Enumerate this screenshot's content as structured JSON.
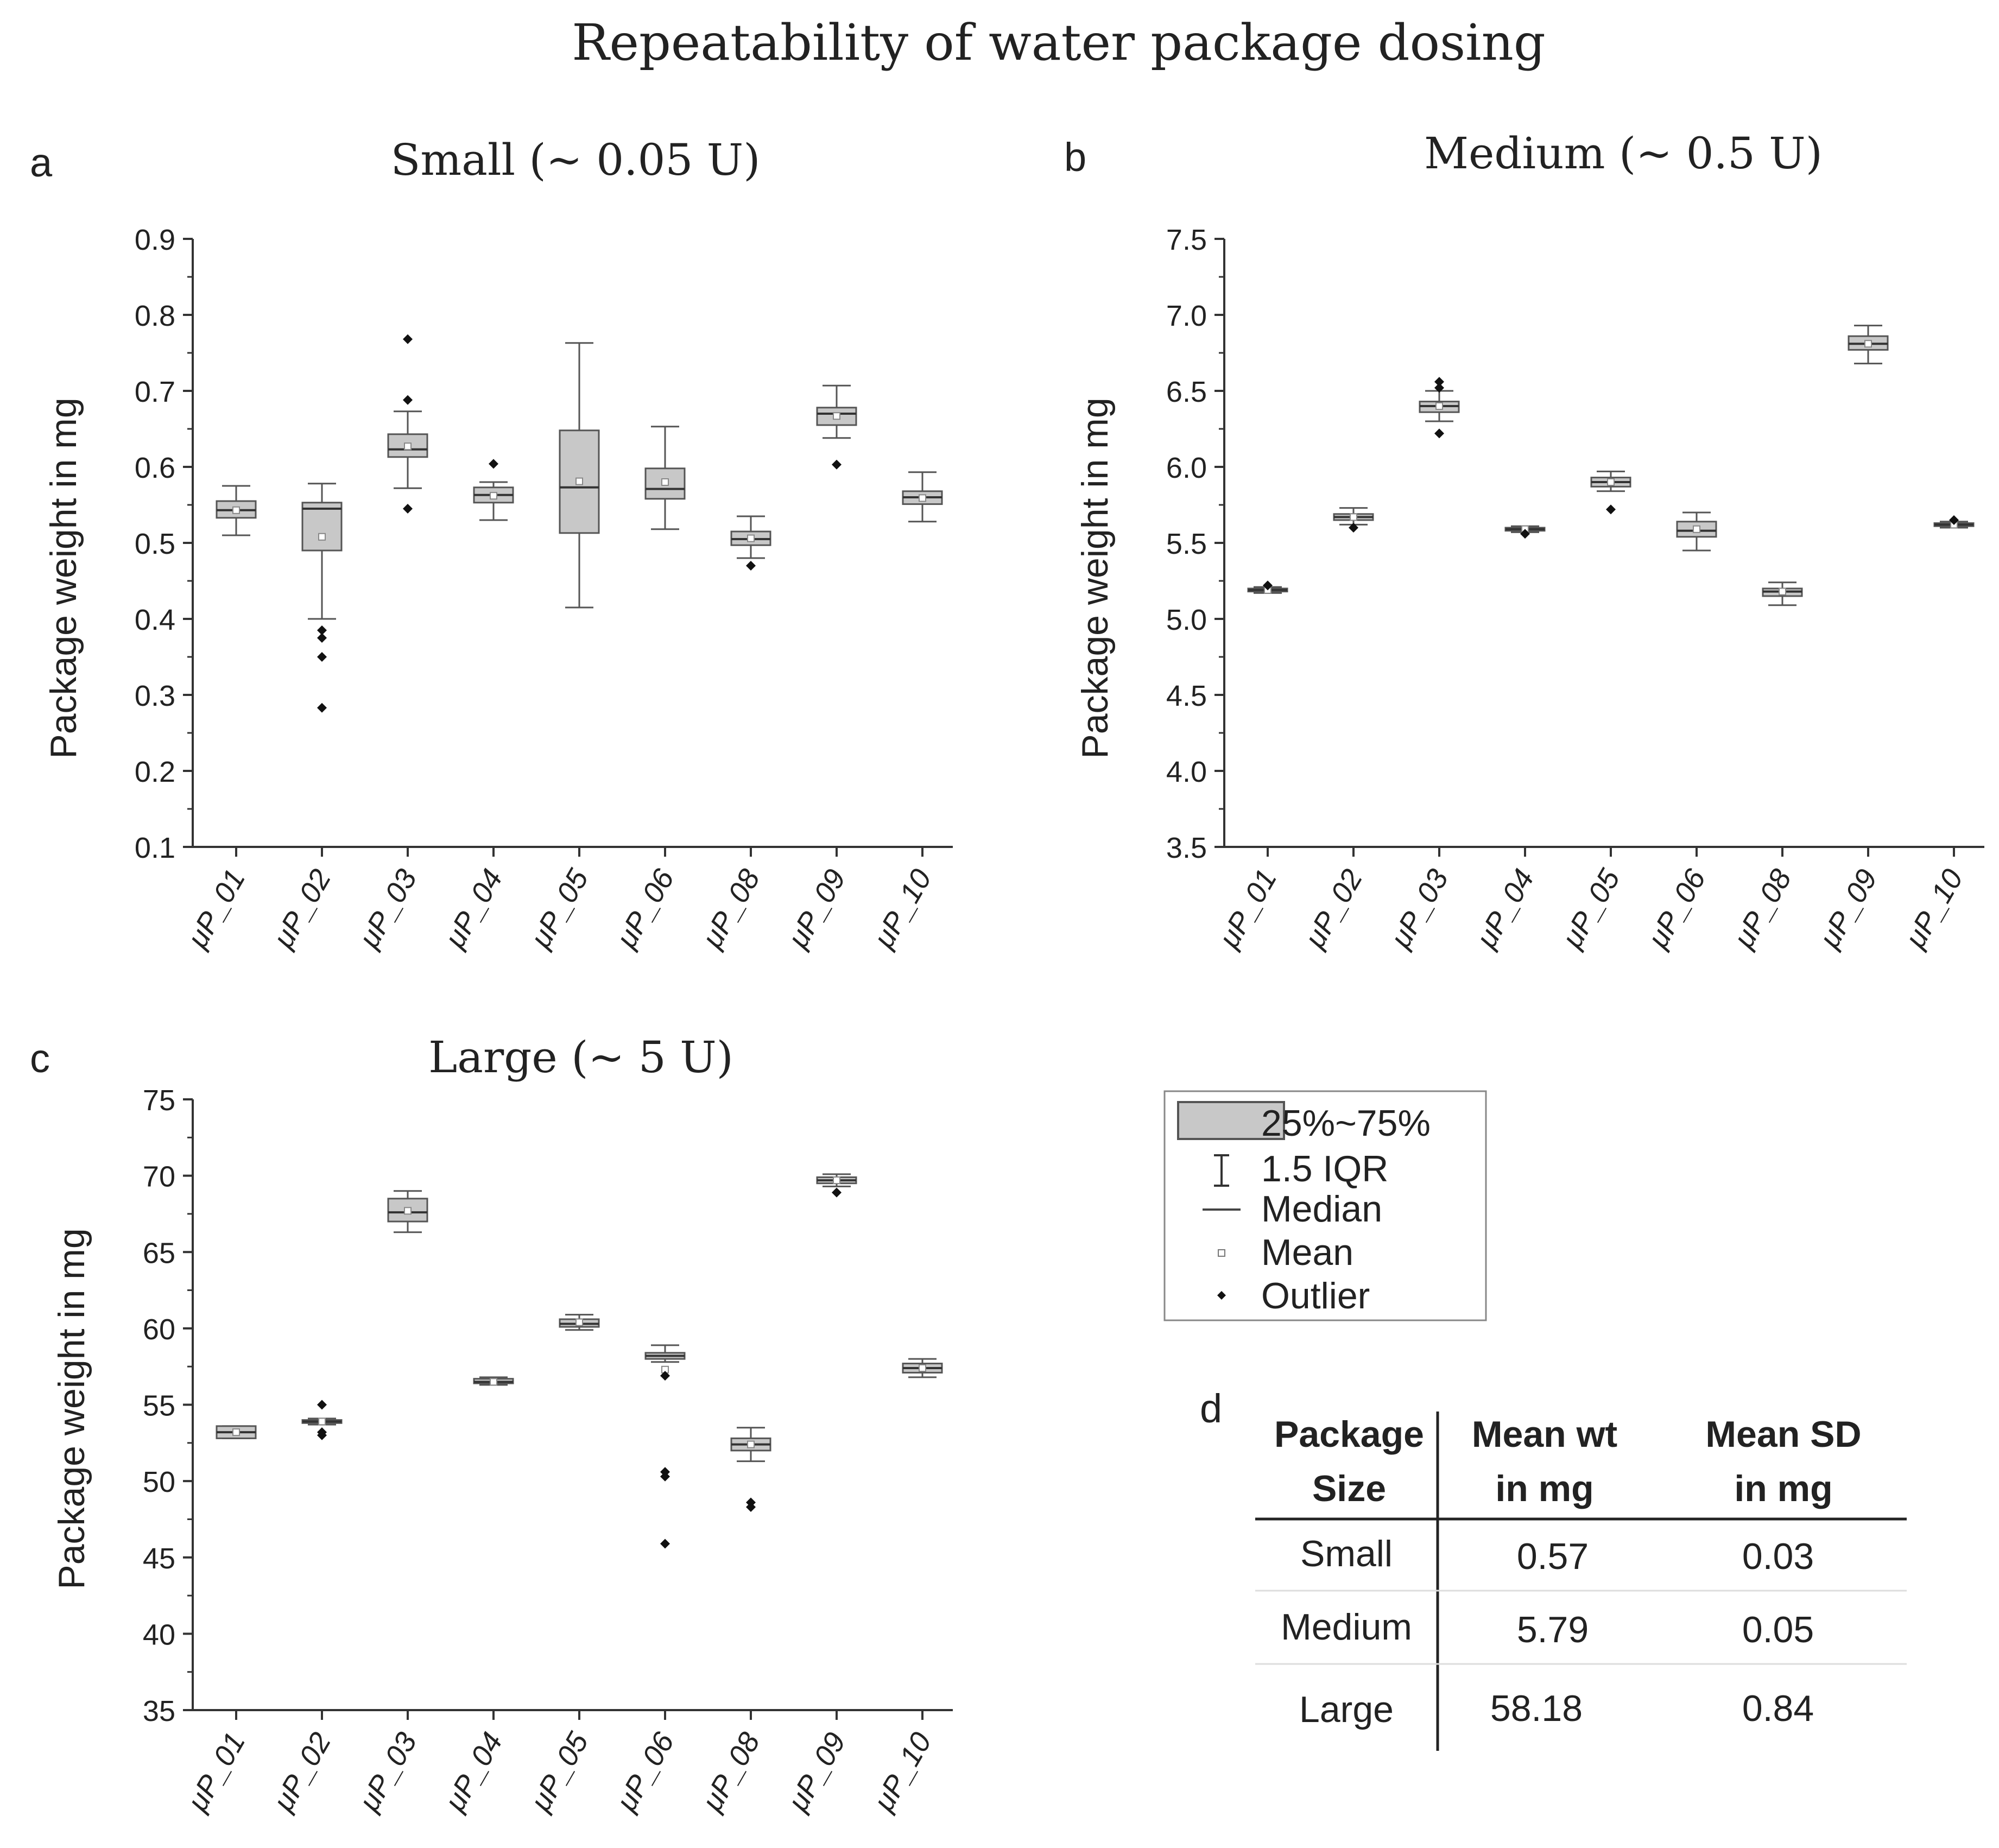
{
  "figure": {
    "title": "Repeatability of water package dosing"
  },
  "chart_data": [
    {
      "type": "box",
      "panel_letter": "a",
      "title": "Small (~ 0.05 U)",
      "ylabel": "Package weight in mg",
      "ylim": [
        0.1,
        0.9
      ],
      "yticks": [
        "0.1",
        "0.2",
        "0.3",
        "0.4",
        "0.5",
        "0.6",
        "0.7",
        "0.8",
        "0.9"
      ],
      "categories": [
        "μP_01",
        "μP_02",
        "μP_03",
        "μP_04",
        "μP_05",
        "μP_06",
        "μP_08",
        "μP_09",
        "μP_10"
      ],
      "boxes": [
        {
          "q1": 0.533,
          "median": 0.543,
          "q3": 0.555,
          "mean": 0.543,
          "wlow": 0.51,
          "whigh": 0.575,
          "outliers": []
        },
        {
          "q1": 0.49,
          "median": 0.545,
          "q3": 0.553,
          "mean": 0.508,
          "wlow": 0.4,
          "whigh": 0.578,
          "outliers": [
            0.385,
            0.375,
            0.35,
            0.283
          ]
        },
        {
          "q1": 0.613,
          "median": 0.623,
          "q3": 0.643,
          "mean": 0.627,
          "wlow": 0.572,
          "whigh": 0.673,
          "outliers": [
            0.768,
            0.688,
            0.545
          ]
        },
        {
          "q1": 0.553,
          "median": 0.563,
          "q3": 0.573,
          "mean": 0.562,
          "wlow": 0.53,
          "whigh": 0.58,
          "outliers": [
            0.604
          ]
        },
        {
          "q1": 0.513,
          "median": 0.573,
          "q3": 0.648,
          "mean": 0.581,
          "wlow": 0.415,
          "whigh": 0.763,
          "outliers": []
        },
        {
          "q1": 0.558,
          "median": 0.571,
          "q3": 0.598,
          "mean": 0.58,
          "wlow": 0.518,
          "whigh": 0.653,
          "outliers": []
        },
        {
          "q1": 0.497,
          "median": 0.505,
          "q3": 0.515,
          "mean": 0.506,
          "wlow": 0.48,
          "whigh": 0.535,
          "outliers": [
            0.47
          ]
        },
        {
          "q1": 0.655,
          "median": 0.67,
          "q3": 0.678,
          "mean": 0.667,
          "wlow": 0.638,
          "whigh": 0.707,
          "outliers": [
            0.603
          ]
        },
        {
          "q1": 0.551,
          "median": 0.56,
          "q3": 0.568,
          "mean": 0.559,
          "wlow": 0.528,
          "whigh": 0.593,
          "outliers": []
        }
      ]
    },
    {
      "type": "box",
      "panel_letter": "b",
      "title": "Medium (~ 0.5 U)",
      "ylabel": "Package weight in mg",
      "ylim": [
        3.5,
        7.5
      ],
      "yticks": [
        "3.5",
        "4.0",
        "4.5",
        "5.0",
        "5.5",
        "6.0",
        "6.5",
        "7.0",
        "7.5"
      ],
      "categories": [
        "μP_01",
        "μP_02",
        "μP_03",
        "μP_04",
        "μP_05",
        "μP_06",
        "μP_08",
        "μP_09",
        "μP_10"
      ],
      "boxes": [
        {
          "q1": 5.18,
          "median": 5.19,
          "q3": 5.2,
          "mean": 5.19,
          "wlow": 5.17,
          "whigh": 5.21,
          "outliers": [
            5.22
          ]
        },
        {
          "q1": 5.65,
          "median": 5.67,
          "q3": 5.69,
          "mean": 5.67,
          "wlow": 5.62,
          "whigh": 5.73,
          "outliers": [
            5.6
          ]
        },
        {
          "q1": 6.36,
          "median": 6.4,
          "q3": 6.43,
          "mean": 6.4,
          "wlow": 6.3,
          "whigh": 6.5,
          "outliers": [
            6.52,
            6.56,
            6.22
          ]
        },
        {
          "q1": 5.58,
          "median": 5.59,
          "q3": 5.6,
          "mean": 5.59,
          "wlow": 5.57,
          "whigh": 5.61,
          "outliers": [
            5.56
          ]
        },
        {
          "q1": 5.87,
          "median": 5.9,
          "q3": 5.93,
          "mean": 5.9,
          "wlow": 5.84,
          "whigh": 5.97,
          "outliers": [
            5.72
          ]
        },
        {
          "q1": 5.54,
          "median": 5.58,
          "q3": 5.64,
          "mean": 5.59,
          "wlow": 5.45,
          "whigh": 5.7,
          "outliers": []
        },
        {
          "q1": 5.15,
          "median": 5.18,
          "q3": 5.2,
          "mean": 5.18,
          "wlow": 5.09,
          "whigh": 5.24,
          "outliers": []
        },
        {
          "q1": 6.77,
          "median": 6.81,
          "q3": 6.86,
          "mean": 6.81,
          "wlow": 6.68,
          "whigh": 6.93,
          "outliers": []
        },
        {
          "q1": 5.61,
          "median": 5.62,
          "q3": 5.63,
          "mean": 5.62,
          "wlow": 5.6,
          "whigh": 5.64,
          "outliers": [
            5.65
          ]
        }
      ]
    },
    {
      "type": "box",
      "panel_letter": "c",
      "title": "Large (~ 5 U)",
      "ylabel": "Package weight in mg",
      "ylim": [
        35,
        75
      ],
      "yticks": [
        "35",
        "40",
        "45",
        "50",
        "55",
        "60",
        "65",
        "70",
        "75"
      ],
      "categories": [
        "μP_01",
        "μP_02",
        "μP_03",
        "μP_04",
        "μP_05",
        "μP_06",
        "μP_08",
        "μP_09",
        "μP_10"
      ],
      "boxes": [
        {
          "q1": 52.8,
          "median": 53.2,
          "q3": 53.6,
          "mean": 53.2,
          "wlow": 52.8,
          "whigh": 53.6,
          "outliers": []
        },
        {
          "q1": 53.8,
          "median": 53.9,
          "q3": 54.0,
          "mean": 53.9,
          "wlow": 53.7,
          "whigh": 54.1,
          "outliers": [
            55.0,
            53.2,
            53.0
          ]
        },
        {
          "q1": 67.0,
          "median": 67.6,
          "q3": 68.5,
          "mean": 67.7,
          "wlow": 66.3,
          "whigh": 69.0,
          "outliers": []
        },
        {
          "q1": 56.4,
          "median": 56.5,
          "q3": 56.7,
          "mean": 56.5,
          "wlow": 56.3,
          "whigh": 56.8,
          "outliers": []
        },
        {
          "q1": 60.1,
          "median": 60.3,
          "q3": 60.6,
          "mean": 60.4,
          "wlow": 59.9,
          "whigh": 60.9,
          "outliers": []
        },
        {
          "q1": 58.0,
          "median": 58.2,
          "q3": 58.4,
          "mean": 57.3,
          "wlow": 57.8,
          "whigh": 58.9,
          "outliers": [
            56.9,
            50.6,
            50.3,
            45.9
          ]
        },
        {
          "q1": 52.0,
          "median": 52.4,
          "q3": 52.8,
          "mean": 52.4,
          "wlow": 51.3,
          "whigh": 53.5,
          "outliers": [
            48.6,
            48.3
          ]
        },
        {
          "q1": 69.5,
          "median": 69.7,
          "q3": 69.9,
          "mean": 69.7,
          "wlow": 69.3,
          "whigh": 70.1,
          "outliers": [
            68.9
          ]
        },
        {
          "q1": 57.1,
          "median": 57.4,
          "q3": 57.7,
          "mean": 57.4,
          "wlow": 56.8,
          "whigh": 58.0,
          "outliers": []
        }
      ]
    }
  ],
  "legend": {
    "items": [
      "25%~75%",
      "1.5 IQR",
      "Median",
      "Mean",
      "Outlier"
    ]
  },
  "summary_table": {
    "panel_letter": "d",
    "headers": [
      [
        "Package",
        "Size"
      ],
      [
        "Mean wt",
        "in mg"
      ],
      [
        "Mean SD",
        "in mg"
      ]
    ],
    "rows": [
      [
        "Small",
        "0.57",
        "0.03"
      ],
      [
        "Medium",
        "5.79",
        "0.05"
      ],
      [
        "Large",
        "58.18",
        "0.84"
      ]
    ]
  },
  "colors": {
    "box_fill": "#c8c8c8",
    "box_stroke": "#555555",
    "axis": "#333333",
    "text": "#222222"
  }
}
